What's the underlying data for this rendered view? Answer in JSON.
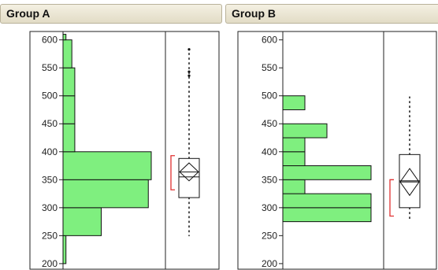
{
  "chart_data": [
    {
      "type": "histogram-boxplot",
      "title": "Group A",
      "ylim": [
        190,
        615
      ],
      "yticks": [
        200,
        250,
        300,
        350,
        400,
        450,
        500,
        550,
        600
      ],
      "histogram_bins": [
        {
          "low": 200,
          "high": 250,
          "count": 1
        },
        {
          "low": 250,
          "high": 300,
          "count": 13
        },
        {
          "low": 300,
          "high": 350,
          "count": 29
        },
        {
          "low": 350,
          "high": 400,
          "count": 30
        },
        {
          "low": 400,
          "high": 450,
          "count": 4
        },
        {
          "low": 450,
          "high": 500,
          "count": 4
        },
        {
          "low": 500,
          "high": 550,
          "count": 4
        },
        {
          "low": 550,
          "high": 600,
          "count": 3
        },
        {
          "low": 600,
          "high": 610,
          "count": 1
        }
      ],
      "boxplot": {
        "whisker_low": 250,
        "q1": 318,
        "median": 355,
        "q3": 388,
        "whisker_high": 580,
        "mean": 364,
        "ci_low": 348,
        "ci_high": 380,
        "shortest_half": [
          332,
          393
        ],
        "outliers": [
          583,
          536,
          543
        ]
      },
      "colors": {
        "bar": "#7fef7f",
        "bracket": "#e03030"
      }
    },
    {
      "type": "histogram-boxplot",
      "title": "Group B",
      "ylim": [
        190,
        615
      ],
      "yticks": [
        200,
        250,
        300,
        350,
        400,
        450,
        500,
        550,
        600
      ],
      "histogram_bins": [
        {
          "low": 275,
          "high": 300,
          "count": 16
        },
        {
          "low": 300,
          "high": 325,
          "count": 16
        },
        {
          "low": 325,
          "high": 350,
          "count": 4
        },
        {
          "low": 350,
          "high": 375,
          "count": 16
        },
        {
          "low": 375,
          "high": 400,
          "count": 4
        },
        {
          "low": 400,
          "high": 425,
          "count": 4
        },
        {
          "low": 425,
          "high": 450,
          "count": 8
        },
        {
          "low": 475,
          "high": 500,
          "count": 4
        }
      ],
      "boxplot": {
        "whisker_low": 280,
        "q1": 300,
        "median": 348,
        "q3": 395,
        "whisker_high": 498,
        "mean": 346,
        "ci_low": 322,
        "ci_high": 370,
        "shortest_half": [
          285,
          350
        ],
        "outliers": []
      },
      "colors": {
        "bar": "#7fef7f",
        "bracket": "#e03030"
      }
    }
  ]
}
